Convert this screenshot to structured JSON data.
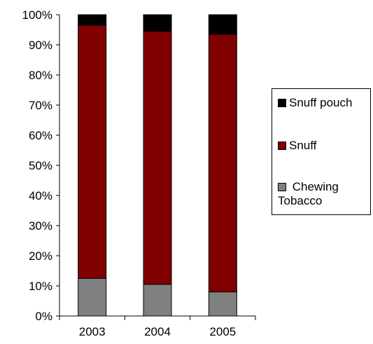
{
  "chart_data": {
    "type": "bar",
    "stacked": true,
    "categories": [
      "2003",
      "2004",
      "2005"
    ],
    "series": [
      {
        "name": "Chewing Tobacco",
        "values": [
          12.5,
          10.5,
          8.0
        ],
        "color": "#808080"
      },
      {
        "name": "Snuff",
        "values": [
          84.0,
          84.0,
          85.5
        ],
        "color": "#800000"
      },
      {
        "name": "Snuff pouch",
        "values": [
          3.5,
          5.5,
          6.5
        ],
        "color": "#000000"
      }
    ],
    "ylim": [
      0,
      100
    ],
    "yticks": [
      "0%",
      "10%",
      "20%",
      "30%",
      "40%",
      "50%",
      "60%",
      "70%",
      "80%",
      "90%",
      "100%"
    ],
    "grid": false,
    "legend_position": "right"
  },
  "legend": {
    "snuff_pouch": "Snuff pouch",
    "snuff": "Snuff",
    "chewing_line1": "Chewing",
    "chewing_line2": "Tobacco"
  }
}
